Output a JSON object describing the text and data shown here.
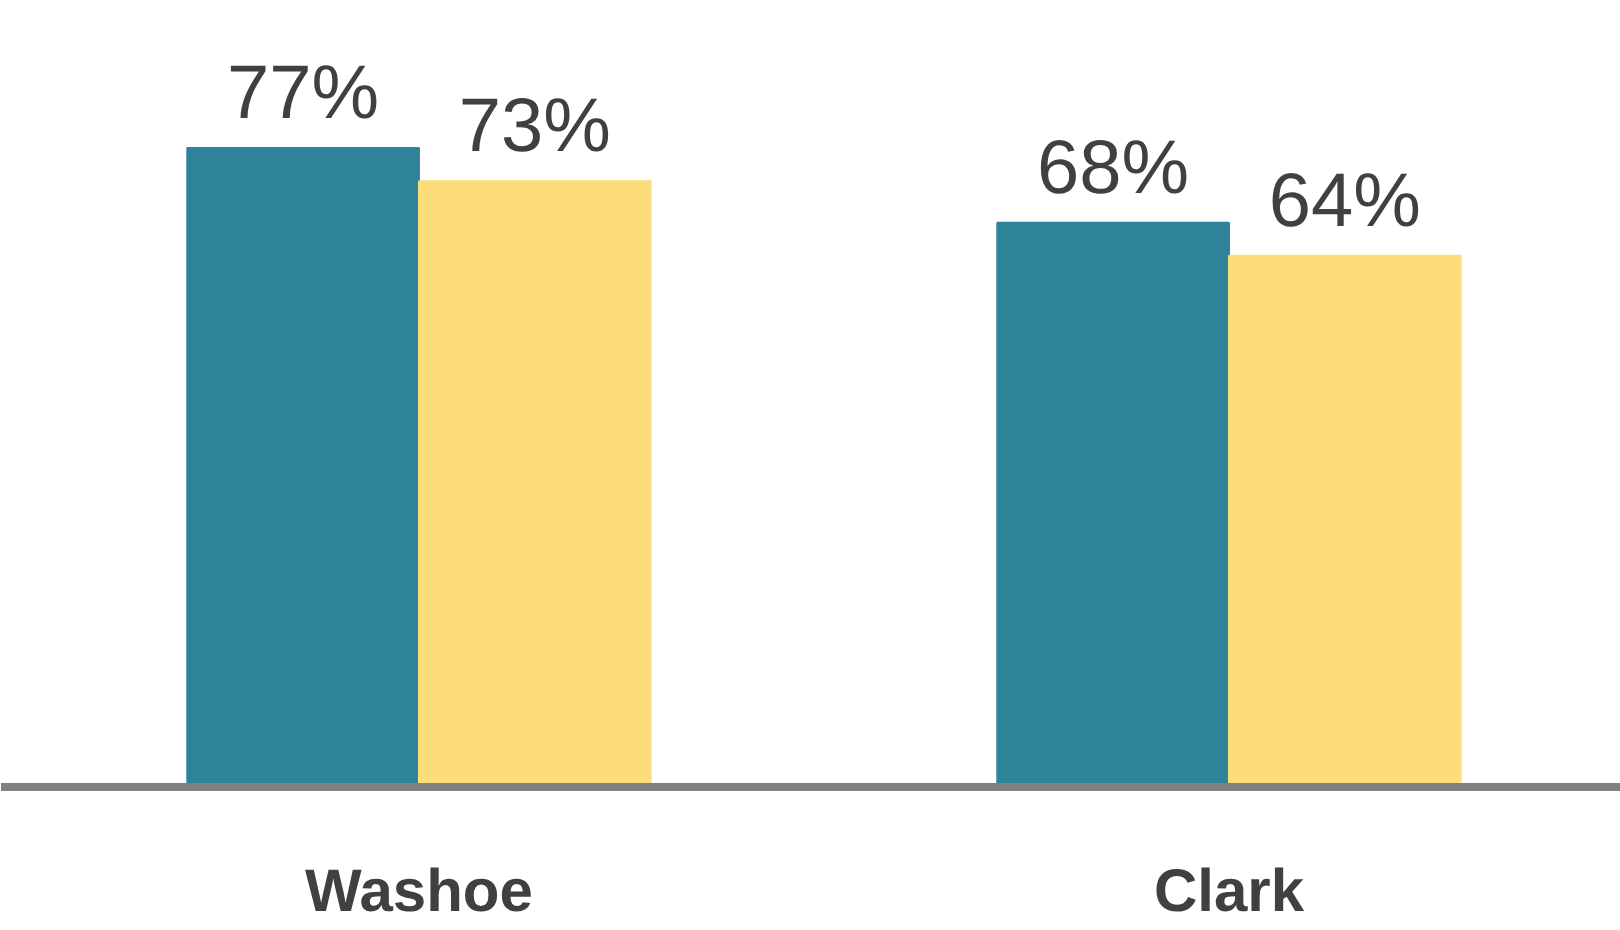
{
  "chart_data": {
    "type": "bar",
    "categories": [
      "Washoe",
      "Clark"
    ],
    "series": [
      {
        "color": "#2e8299",
        "values": [
          77,
          68
        ],
        "value_labels": [
          "77%",
          "68%"
        ]
      },
      {
        "color": "#fddc7c",
        "values": [
          73,
          64
        ],
        "value_labels": [
          "73%",
          "64%"
        ]
      }
    ]
  }
}
